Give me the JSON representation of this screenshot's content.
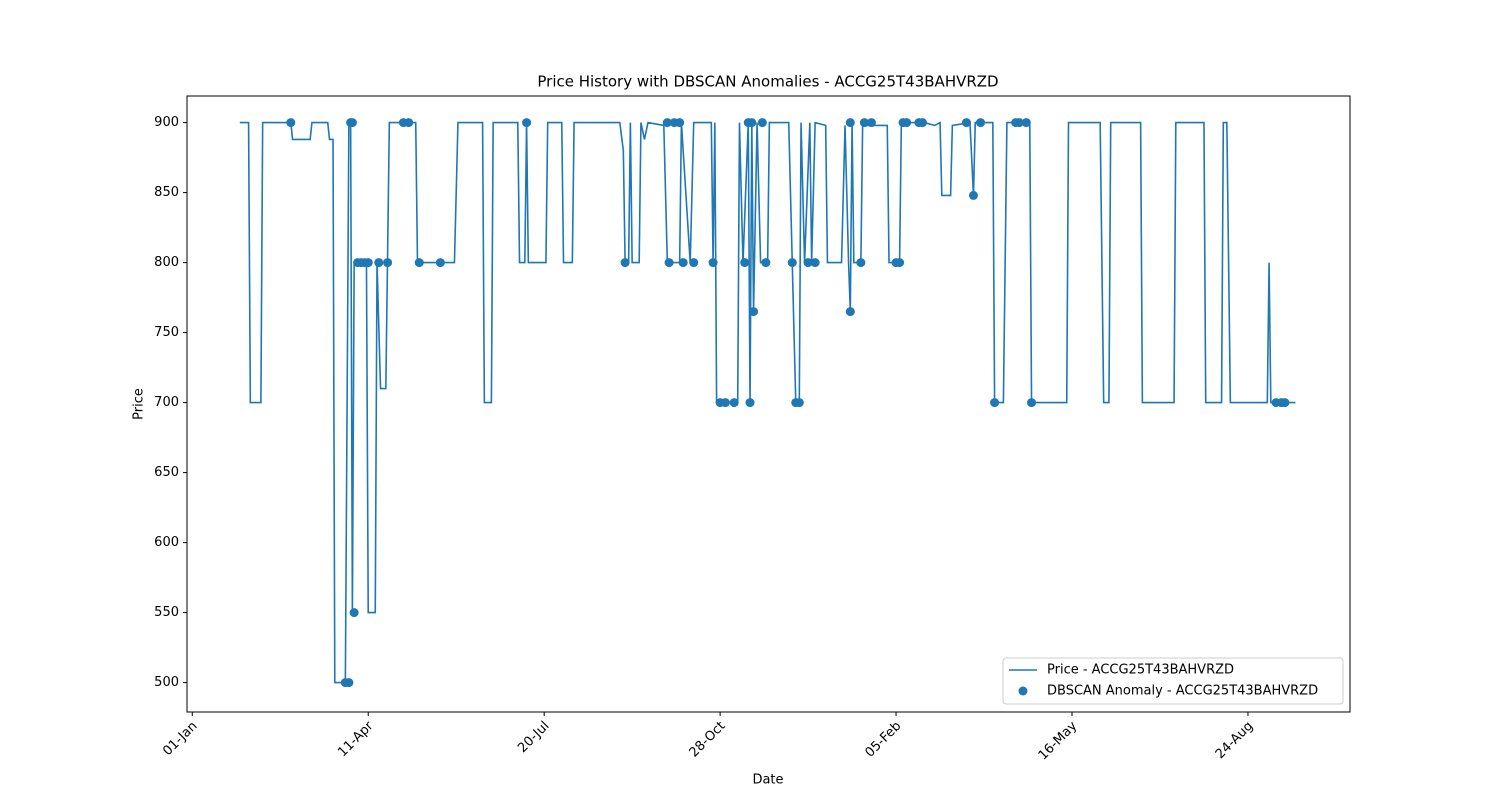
{
  "chart_data": {
    "type": "line",
    "title": "Price History with DBSCAN Anomalies - ACCG25T43BAHVRZD",
    "xlabel": "Date",
    "ylabel": "Price",
    "xlim": [
      -3,
      658
    ],
    "ylim": [
      479,
      919
    ],
    "xticks": [
      {
        "value": 0,
        "label": "01-Jan"
      },
      {
        "value": 100,
        "label": "11-Apr"
      },
      {
        "value": 200,
        "label": "20-Jul"
      },
      {
        "value": 300,
        "label": "28-Oct"
      },
      {
        "value": 400,
        "label": "05-Feb"
      },
      {
        "value": 500,
        "label": "16-May"
      },
      {
        "value": 600,
        "label": "24-Aug"
      }
    ],
    "yticks": [
      500,
      550,
      600,
      650,
      700,
      750,
      800,
      850,
      900
    ],
    "grid": false,
    "legend": "lower right",
    "series": [
      {
        "name": "Price - ACCG25T43BAHVRZD",
        "color": "#1f77b4",
        "type": "line",
        "x": [
          27,
          32,
          33,
          39,
          40,
          56,
          57,
          67,
          68,
          77,
          78,
          80,
          81,
          87,
          89,
          90,
          91,
          92,
          99,
          100,
          104,
          105,
          107,
          110,
          112,
          127,
          128,
          149,
          151,
          165,
          166,
          170,
          171,
          185,
          186,
          189,
          190,
          191,
          201,
          202,
          210,
          211,
          216,
          217,
          243,
          245,
          246,
          248,
          249,
          250,
          254,
          255,
          257,
          259,
          268,
          270,
          277,
          278,
          283,
          285,
          295,
          296,
          297,
          298,
          310,
          311,
          313,
          316,
          317,
          318,
          319,
          321,
          323,
          327,
          328,
          339,
          341,
          343,
          345,
          346,
          348,
          351,
          352,
          354,
          360,
          361,
          369,
          371,
          373,
          374,
          375,
          376,
          380,
          381,
          395,
          396,
          402,
          403,
          416,
          422,
          425,
          426,
          431,
          432,
          442,
          444,
          445,
          455,
          456,
          461,
          463,
          476,
          477,
          497,
          498,
          516,
          518,
          521,
          522,
          539,
          540,
          558,
          559,
          575,
          576,
          585,
          586,
          588,
          589,
          590,
          611,
          612,
          613,
          627
        ],
        "values": [
          900,
          900,
          700,
          700,
          900,
          900,
          888,
          888,
          900,
          900,
          888,
          888,
          500,
          500,
          900,
          900,
          550,
          800,
          800,
          550,
          550,
          800,
          710,
          710,
          900,
          900,
          800,
          800,
          900,
          900,
          700,
          700,
          900,
          900,
          800,
          800,
          900,
          800,
          800,
          900,
          900,
          800,
          800,
          900,
          900,
          880,
          800,
          800,
          900,
          800,
          800,
          900,
          888,
          900,
          898,
          800,
          800,
          900,
          800,
          900,
          900,
          800,
          900,
          700,
          700,
          900,
          800,
          900,
          700,
          900,
          765,
          900,
          800,
          800,
          900,
          900,
          800,
          700,
          700,
          900,
          800,
          900,
          800,
          900,
          898,
          800,
          800,
          898,
          800,
          765,
          900,
          800,
          800,
          898,
          898,
          800,
          800,
          900,
          900,
          898,
          900,
          848,
          848,
          898,
          900,
          848,
          900,
          900,
          700,
          700,
          900,
          900,
          700,
          700,
          900,
          900,
          700,
          700,
          900,
          900,
          700,
          700,
          900,
          900,
          700,
          700,
          900,
          900,
          800,
          700,
          700,
          800,
          700,
          700
        ]
      },
      {
        "name": "DBSCAN Anomaly - ACCG25T43BAHVRZD",
        "color": "#1f77b4",
        "type": "scatter",
        "x": [
          56,
          87,
          89,
          90,
          91,
          92,
          94,
          96,
          98,
          100,
          106,
          111,
          120,
          123,
          129,
          141,
          190,
          246,
          270,
          271,
          274,
          277,
          279,
          285,
          296,
          300,
          303,
          308,
          314,
          316,
          318,
          317,
          319,
          324,
          326,
          341,
          343,
          345,
          350,
          354,
          374,
          374,
          380,
          382,
          386,
          400,
          402,
          404,
          406,
          413,
          415,
          440,
          444,
          448,
          456,
          468,
          470,
          474,
          477,
          616,
          619,
          621
        ],
        "values": [
          900,
          500,
          500,
          900,
          900,
          550,
          800,
          800,
          800,
          800,
          800,
          800,
          900,
          900,
          800,
          800,
          900,
          800,
          900,
          800,
          900,
          900,
          800,
          800,
          800,
          700,
          700,
          700,
          800,
          900,
          900,
          700,
          765,
          900,
          800,
          800,
          700,
          700,
          800,
          800,
          765,
          900,
          800,
          900,
          900,
          800,
          800,
          900,
          900,
          900,
          900,
          900,
          848,
          900,
          700,
          900,
          900,
          900,
          700,
          700,
          700,
          700
        ]
      }
    ]
  }
}
